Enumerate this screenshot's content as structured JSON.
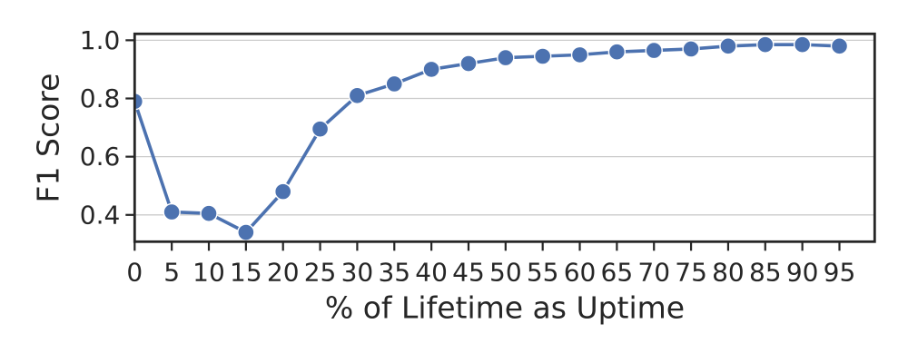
{
  "chart_data": {
    "type": "line",
    "title": "",
    "xlabel": "% of Lifetime as Uptime",
    "ylabel": "F1 Score",
    "x": [
      0,
      5,
      10,
      15,
      20,
      25,
      30,
      35,
      40,
      45,
      50,
      55,
      60,
      65,
      70,
      75,
      80,
      85,
      90,
      95
    ],
    "series": [
      {
        "name": "F1 Score",
        "values": [
          0.79,
          0.41,
          0.405,
          0.34,
          0.48,
          0.695,
          0.81,
          0.85,
          0.9,
          0.92,
          0.94,
          0.945,
          0.95,
          0.96,
          0.965,
          0.97,
          0.98,
          0.985,
          0.985,
          0.98
        ]
      }
    ],
    "xtick_values": [
      0,
      5,
      10,
      15,
      20,
      25,
      30,
      35,
      40,
      45,
      50,
      55,
      60,
      65,
      70,
      75,
      80,
      85,
      90,
      95
    ],
    "xtick_labels": [
      "0",
      "5",
      "10",
      "15",
      "20",
      "25",
      "30",
      "35",
      "40",
      "45",
      "50",
      "55",
      "60",
      "65",
      "70",
      "75",
      "80",
      "85",
      "90",
      "95"
    ],
    "ytick_values": [
      0.4,
      0.6,
      0.8,
      1.0
    ],
    "ytick_labels": [
      "0.4",
      "0.6",
      "0.8",
      "1.0"
    ],
    "xlim": [
      0,
      99.75
    ],
    "ylim": [
      0.308,
      1.022
    ],
    "grid": "horizontal",
    "legend": "none",
    "marker": "circle",
    "colors": {
      "line": "#4C72B0",
      "marker_fill": "#4C72B0",
      "marker_edge": "#ffffff",
      "grid": "#cccccc",
      "axis": "#262626",
      "text": "#262626",
      "background": "#ffffff"
    }
  }
}
